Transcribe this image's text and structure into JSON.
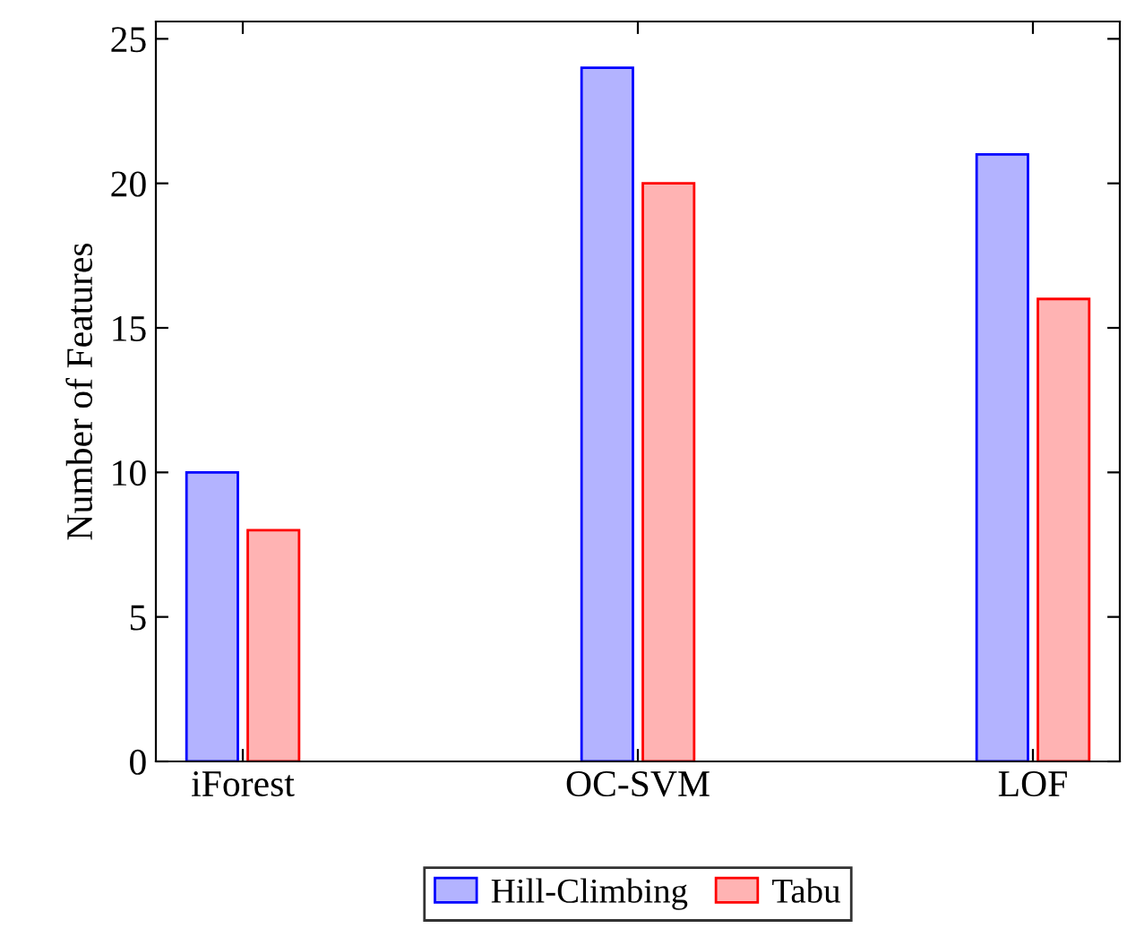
{
  "chart_data": {
    "type": "bar",
    "ylabel": "Number of Features",
    "categories": [
      "iForest",
      "OC-SVM",
      "LOF"
    ],
    "series": [
      {
        "name": "Hill-Climbing",
        "color": "#b3b3ff",
        "values": [
          10,
          24,
          21
        ]
      },
      {
        "name": "Tabu",
        "color": "#ffb3b3",
        "values": [
          8,
          20,
          16
        ]
      }
    ],
    "ylim": [
      0,
      25.6
    ],
    "yticks": [
      0,
      5,
      10,
      15,
      20,
      25
    ],
    "grid": false,
    "legend": "bottom"
  }
}
